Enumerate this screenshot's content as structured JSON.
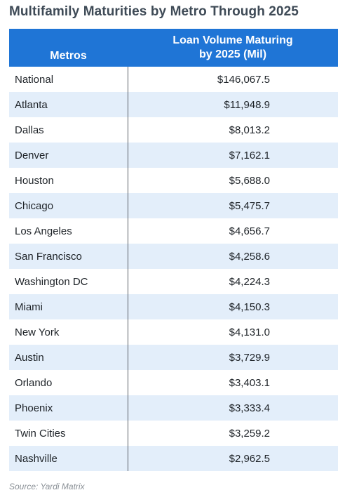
{
  "title": "Multifamily Maturities by Metro Through 2025",
  "chart_data": {
    "type": "table",
    "title": "Multifamily Maturities by Metro Through 2025",
    "columns": [
      "Metros",
      "Loan Volume Maturing by 2025 (Mil)"
    ],
    "column_header_lines": [
      [
        "Metros"
      ],
      [
        "Loan Volume Maturing",
        "by 2025 (Mil)"
      ]
    ],
    "rows": [
      {
        "metro": "National",
        "value": "$146,067.5"
      },
      {
        "metro": "Atlanta",
        "value": "$11,948.9"
      },
      {
        "metro": "Dallas",
        "value": "$8,013.2"
      },
      {
        "metro": "Denver",
        "value": "$7,162.1"
      },
      {
        "metro": "Houston",
        "value": "$5,688.0"
      },
      {
        "metro": "Chicago",
        "value": "$5,475.7"
      },
      {
        "metro": "Los Angeles",
        "value": "$4,656.7"
      },
      {
        "metro": "San Francisco",
        "value": "$4,258.6"
      },
      {
        "metro": "Washington DC",
        "value": "$4,224.3"
      },
      {
        "metro": "Miami",
        "value": "$4,150.3"
      },
      {
        "metro": "New York",
        "value": "$4,131.0"
      },
      {
        "metro": "Austin",
        "value": "$3,729.9"
      },
      {
        "metro": "Orlando",
        "value": "$3,403.1"
      },
      {
        "metro": "Phoenix",
        "value": "$3,333.4"
      },
      {
        "metro": "Twin Cities",
        "value": "$3,259.2"
      },
      {
        "metro": "Nashville",
        "value": "$2,962.5"
      }
    ],
    "values": [
      146067.5,
      11948.9,
      8013.2,
      7162.1,
      5688.0,
      5475.7,
      4656.7,
      4258.6,
      4224.3,
      4150.3,
      4131.0,
      3729.9,
      3403.1,
      3333.4,
      3259.2,
      2962.5
    ],
    "header_color": "#1f75d6",
    "stripe_color": "#e3eefa"
  },
  "source": "Source: Yardi Matrix"
}
